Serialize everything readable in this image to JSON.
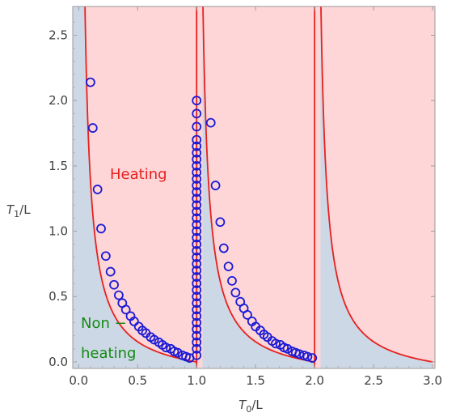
{
  "chart_data": {
    "type": "scatter",
    "xlabel": {
      "main": "T",
      "sub": "0",
      "rest": "/L"
    },
    "ylabel": {
      "main": "T",
      "sub": "1",
      "rest": "/L"
    },
    "xlim": [
      -0.05,
      3.02
    ],
    "ylim": [
      -0.05,
      2.72
    ],
    "xticks": [
      "0.0",
      "0.5",
      "1.0",
      "1.5",
      "2.0",
      "2.5",
      "3.0"
    ],
    "yticks": [
      "0.0",
      "0.5",
      "1.0",
      "1.5",
      "2.0",
      "2.5"
    ],
    "grid": false,
    "annotations": {
      "heating": "Heating",
      "non_heating_line1": "Non −",
      "non_heating_line2": "heating"
    },
    "colors": {
      "heating_region": "#ffd6d8",
      "non_heating_region": "#cdd8e6",
      "boundary_curve": "#e8201d",
      "markers": "#1a1ad6"
    },
    "region_boundaries": [
      {
        "x_from": 0.07,
        "x_to": 1.0,
        "y_at_right": 0.0
      },
      {
        "x_from": 1.08,
        "x_to": 2.0,
        "y_at_right": 0.0
      },
      {
        "x_from": 2.07,
        "x_to": 3.0,
        "y_at_right": 0.0
      }
    ],
    "vertical_boundaries": [
      1.0,
      2.0
    ],
    "series": [
      {
        "type": "scatter",
        "marker": "open-circle",
        "points": [
          [
            0.1,
            2.14
          ],
          [
            0.12,
            1.79
          ],
          [
            0.16,
            1.32
          ],
          [
            0.19,
            1.02
          ],
          [
            0.23,
            0.81
          ],
          [
            0.27,
            0.69
          ],
          [
            0.3,
            0.59
          ],
          [
            0.34,
            0.51
          ],
          [
            0.37,
            0.45
          ],
          [
            0.4,
            0.4
          ],
          [
            0.44,
            0.35
          ],
          [
            0.47,
            0.31
          ],
          [
            0.51,
            0.27
          ],
          [
            0.54,
            0.24
          ],
          [
            0.57,
            0.22
          ],
          [
            0.61,
            0.19
          ],
          [
            0.64,
            0.17
          ],
          [
            0.68,
            0.15
          ],
          [
            0.71,
            0.13
          ],
          [
            0.74,
            0.11
          ],
          [
            0.78,
            0.1
          ],
          [
            0.81,
            0.08
          ],
          [
            0.84,
            0.07
          ],
          [
            0.88,
            0.05
          ],
          [
            0.91,
            0.04
          ],
          [
            0.94,
            0.03
          ],
          [
            1.0,
            0.05
          ],
          [
            1.0,
            0.1
          ],
          [
            1.0,
            0.15
          ],
          [
            1.0,
            0.2
          ],
          [
            1.0,
            0.25
          ],
          [
            1.0,
            0.3
          ],
          [
            1.0,
            0.35
          ],
          [
            1.0,
            0.4
          ],
          [
            1.0,
            0.45
          ],
          [
            1.0,
            0.5
          ],
          [
            1.0,
            0.55
          ],
          [
            1.0,
            0.6
          ],
          [
            1.0,
            0.65
          ],
          [
            1.0,
            0.7
          ],
          [
            1.0,
            0.75
          ],
          [
            1.0,
            0.8
          ],
          [
            1.0,
            0.85
          ],
          [
            1.0,
            0.9
          ],
          [
            1.0,
            0.95
          ],
          [
            1.0,
            1.0
          ],
          [
            1.0,
            1.05
          ],
          [
            1.0,
            1.1
          ],
          [
            1.0,
            1.15
          ],
          [
            1.0,
            1.2
          ],
          [
            1.0,
            1.25
          ],
          [
            1.0,
            1.3
          ],
          [
            1.0,
            1.35
          ],
          [
            1.0,
            1.4
          ],
          [
            1.0,
            1.45
          ],
          [
            1.0,
            1.5
          ],
          [
            1.0,
            1.55
          ],
          [
            1.0,
            1.6
          ],
          [
            1.0,
            1.65
          ],
          [
            1.0,
            1.7
          ],
          [
            1.0,
            1.8
          ],
          [
            1.0,
            1.9
          ],
          [
            1.0,
            2.0
          ],
          [
            1.12,
            1.83
          ],
          [
            1.16,
            1.35
          ],
          [
            1.2,
            1.07
          ],
          [
            1.23,
            0.87
          ],
          [
            1.27,
            0.73
          ],
          [
            1.3,
            0.62
          ],
          [
            1.33,
            0.53
          ],
          [
            1.37,
            0.46
          ],
          [
            1.4,
            0.41
          ],
          [
            1.43,
            0.36
          ],
          [
            1.47,
            0.31
          ],
          [
            1.5,
            0.27
          ],
          [
            1.54,
            0.24
          ],
          [
            1.57,
            0.21
          ],
          [
            1.6,
            0.19
          ],
          [
            1.64,
            0.16
          ],
          [
            1.67,
            0.14
          ],
          [
            1.71,
            0.13
          ],
          [
            1.74,
            0.11
          ],
          [
            1.77,
            0.1
          ],
          [
            1.81,
            0.08
          ],
          [
            1.84,
            0.07
          ],
          [
            1.87,
            0.06
          ],
          [
            1.91,
            0.05
          ],
          [
            1.94,
            0.04
          ],
          [
            1.98,
            0.03
          ]
        ]
      }
    ]
  }
}
